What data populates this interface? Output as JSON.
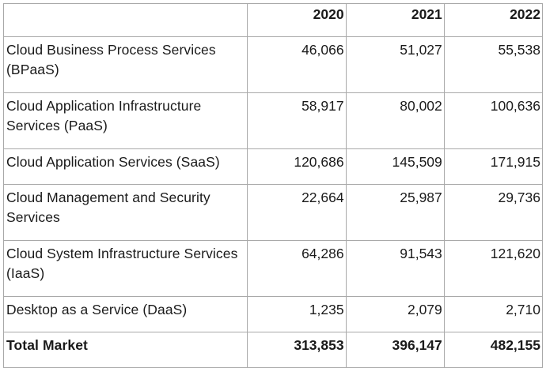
{
  "table": {
    "headers": [
      "",
      "2020",
      "2021",
      "2022"
    ],
    "rows": [
      {
        "name": "Cloud Business Process Services (BPaaS)",
        "v2020": "46,066",
        "v2021": "51,027",
        "v2022": "55,538"
      },
      {
        "name": "Cloud Application Infrastructure Services (PaaS)",
        "v2020": "58,917",
        "v2021": "80,002",
        "v2022": "100,636"
      },
      {
        "name": "Cloud Application Services (SaaS)",
        "v2020": "120,686",
        "v2021": "145,509",
        "v2022": "171,915"
      },
      {
        "name": "Cloud Management and Security Services",
        "v2020": "22,664",
        "v2021": "25,987",
        "v2022": "29,736"
      },
      {
        "name": "Cloud System Infrastructure Services (IaaS)",
        "v2020": "64,286",
        "v2021": "91,543",
        "v2022": "121,620"
      },
      {
        "name": "Desktop as a Service (DaaS)",
        "v2020": "1,235",
        "v2021": "2,079",
        "v2022": "2,710"
      }
    ],
    "total": {
      "name": "Total Market",
      "v2020": "313,853",
      "v2021": "396,147",
      "v2022": "482,155"
    }
  }
}
